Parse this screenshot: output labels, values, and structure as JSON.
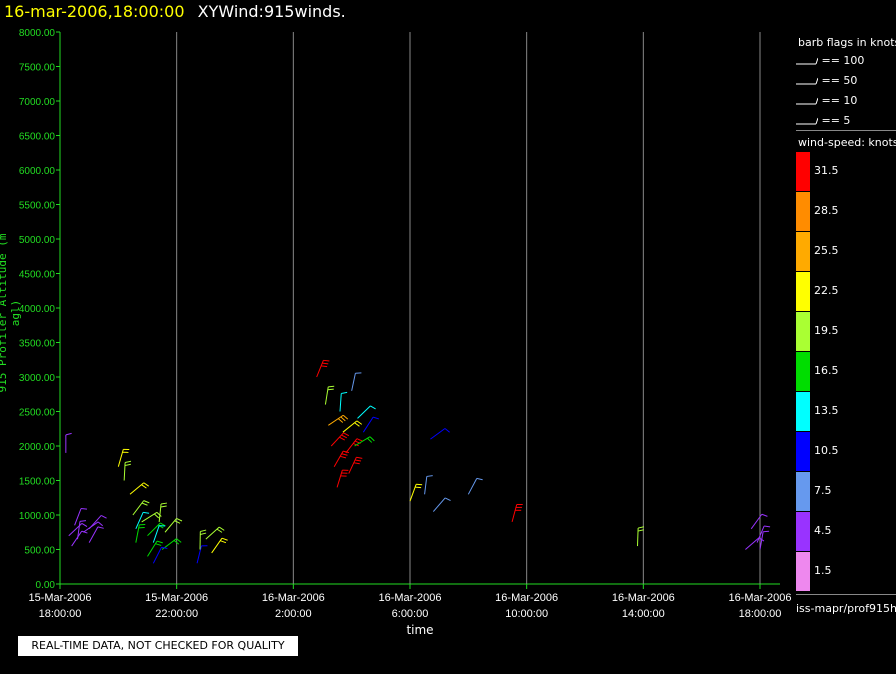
{
  "header": {
    "datetime": "16-mar-2006,18:00:00",
    "title": "XYWind:915winds."
  },
  "chart_data": {
    "type": "scatter",
    "title": "XYWind:915winds.",
    "xlabel": "time",
    "ylabel": "915 Profiler Altitude (m agl)",
    "ylim": [
      0,
      8000
    ],
    "y_ticks": [
      "0.00",
      "500.00",
      "1000.00",
      "1500.00",
      "2000.00",
      "2500.00",
      "3000.00",
      "3500.00",
      "4000.00",
      "4500.00",
      "5000.00",
      "5500.00",
      "6000.00",
      "6500.00",
      "7000.00",
      "7500.00",
      "8000.00"
    ],
    "x_ticks": [
      {
        "date": "15-Mar-2006",
        "time": "18:00:00"
      },
      {
        "date": "15-Mar-2006",
        "time": "22:00:00"
      },
      {
        "date": "16-Mar-2006",
        "time": "2:00:00"
      },
      {
        "date": "16-Mar-2006",
        "time": "6:00:00"
      },
      {
        "date": "16-Mar-2006",
        "time": "10:00:00"
      },
      {
        "date": "16-Mar-2006",
        "time": "14:00:00"
      },
      {
        "date": "16-Mar-2006",
        "time": "18:00:00"
      }
    ],
    "xlim_hours": [
      0,
      24
    ],
    "grid": "vertical at x ticks",
    "observations": [
      {
        "t": 0.2,
        "alt": 1900,
        "ws": 5
      },
      {
        "t": 0.3,
        "alt": 700,
        "ws": 5
      },
      {
        "t": 0.4,
        "alt": 550,
        "ws": 5
      },
      {
        "t": 0.5,
        "alt": 850,
        "ws": 4
      },
      {
        "t": 0.6,
        "alt": 650,
        "ws": 5
      },
      {
        "t": 0.8,
        "alt": 750,
        "ws": 5
      },
      {
        "t": 1.0,
        "alt": 800,
        "ws": 5
      },
      {
        "t": 1.0,
        "alt": 600,
        "ws": 4
      },
      {
        "t": 2.0,
        "alt": 1700,
        "ws": 22
      },
      {
        "t": 2.2,
        "alt": 1500,
        "ws": 20
      },
      {
        "t": 2.4,
        "alt": 1300,
        "ws": 22
      },
      {
        "t": 2.5,
        "alt": 1000,
        "ws": 19
      },
      {
        "t": 2.6,
        "alt": 800,
        "ws": 14
      },
      {
        "t": 2.6,
        "alt": 600,
        "ws": 17
      },
      {
        "t": 2.8,
        "alt": 900,
        "ws": 20
      },
      {
        "t": 3.0,
        "alt": 700,
        "ws": 16
      },
      {
        "t": 3.0,
        "alt": 400,
        "ws": 17
      },
      {
        "t": 3.2,
        "alt": 600,
        "ws": 13
      },
      {
        "t": 3.4,
        "alt": 900,
        "ws": 19
      },
      {
        "t": 3.5,
        "alt": 500,
        "ws": 17
      },
      {
        "t": 3.6,
        "alt": 750,
        "ws": 18
      },
      {
        "t": 3.2,
        "alt": 300,
        "ws": 11
      },
      {
        "t": 4.7,
        "alt": 300,
        "ws": 10
      },
      {
        "t": 4.8,
        "alt": 500,
        "ws": 19
      },
      {
        "t": 5.0,
        "alt": 650,
        "ws": 20
      },
      {
        "t": 5.2,
        "alt": 450,
        "ws": 21
      },
      {
        "t": 8.8,
        "alt": 3000,
        "ws": 32
      },
      {
        "t": 9.1,
        "alt": 2600,
        "ws": 19
      },
      {
        "t": 9.2,
        "alt": 2300,
        "ws": 25
      },
      {
        "t": 9.3,
        "alt": 2000,
        "ws": 30
      },
      {
        "t": 9.4,
        "alt": 1700,
        "ws": 32
      },
      {
        "t": 9.5,
        "alt": 1400,
        "ws": 32
      },
      {
        "t": 9.6,
        "alt": 2500,
        "ws": 14
      },
      {
        "t": 9.7,
        "alt": 2200,
        "ws": 22
      },
      {
        "t": 9.8,
        "alt": 1900,
        "ws": 32
      },
      {
        "t": 9.9,
        "alt": 1600,
        "ws": 30
      },
      {
        "t": 10.0,
        "alt": 2800,
        "ws": 8
      },
      {
        "t": 10.1,
        "alt": 2000,
        "ws": 17
      },
      {
        "t": 10.2,
        "alt": 2400,
        "ws": 13
      },
      {
        "t": 10.4,
        "alt": 2200,
        "ws": 10
      },
      {
        "t": 12.0,
        "alt": 1200,
        "ws": 22
      },
      {
        "t": 12.5,
        "alt": 1300,
        "ws": 8
      },
      {
        "t": 12.7,
        "alt": 2100,
        "ws": 10
      },
      {
        "t": 12.8,
        "alt": 1050,
        "ws": 8
      },
      {
        "t": 14.0,
        "alt": 1300,
        "ws": 8
      },
      {
        "t": 15.5,
        "alt": 900,
        "ws": 32
      },
      {
        "t": 19.8,
        "alt": 550,
        "ws": 18
      },
      {
        "t": 23.5,
        "alt": 500,
        "ws": 4
      },
      {
        "t": 23.7,
        "alt": 800,
        "ws": 5
      },
      {
        "t": 23.9,
        "alt": 600,
        "ws": 5
      },
      {
        "t": 24.0,
        "alt": 500,
        "ws": 4
      }
    ]
  },
  "legend": {
    "barb_title": "barb flags in knots",
    "flags": [
      "== 100",
      "== 50",
      "== 10",
      "== 5"
    ],
    "ws_title": "wind-speed: knots",
    "scale": [
      {
        "label": "31.5",
        "color": "#ff0000"
      },
      {
        "label": "28.5",
        "color": "#ff8c00"
      },
      {
        "label": "25.5",
        "color": "#ffaa00"
      },
      {
        "label": "22.5",
        "color": "#ffff00"
      },
      {
        "label": "19.5",
        "color": "#aaff33"
      },
      {
        "label": "16.5",
        "color": "#00dd00"
      },
      {
        "label": "13.5",
        "color": "#00ffff"
      },
      {
        "label": "10.5",
        "color": "#0000ff"
      },
      {
        "label": "7.5",
        "color": "#6699ee"
      },
      {
        "label": "4.5",
        "color": "#9933ff"
      },
      {
        "label": "1.5",
        "color": "#ee88ee"
      }
    ]
  },
  "axis_color": "#22dd22",
  "footer": {
    "source": "iss-mapr/prof915h",
    "qc_note": "REAL-TIME DATA, NOT CHECKED FOR QUALITY"
  }
}
